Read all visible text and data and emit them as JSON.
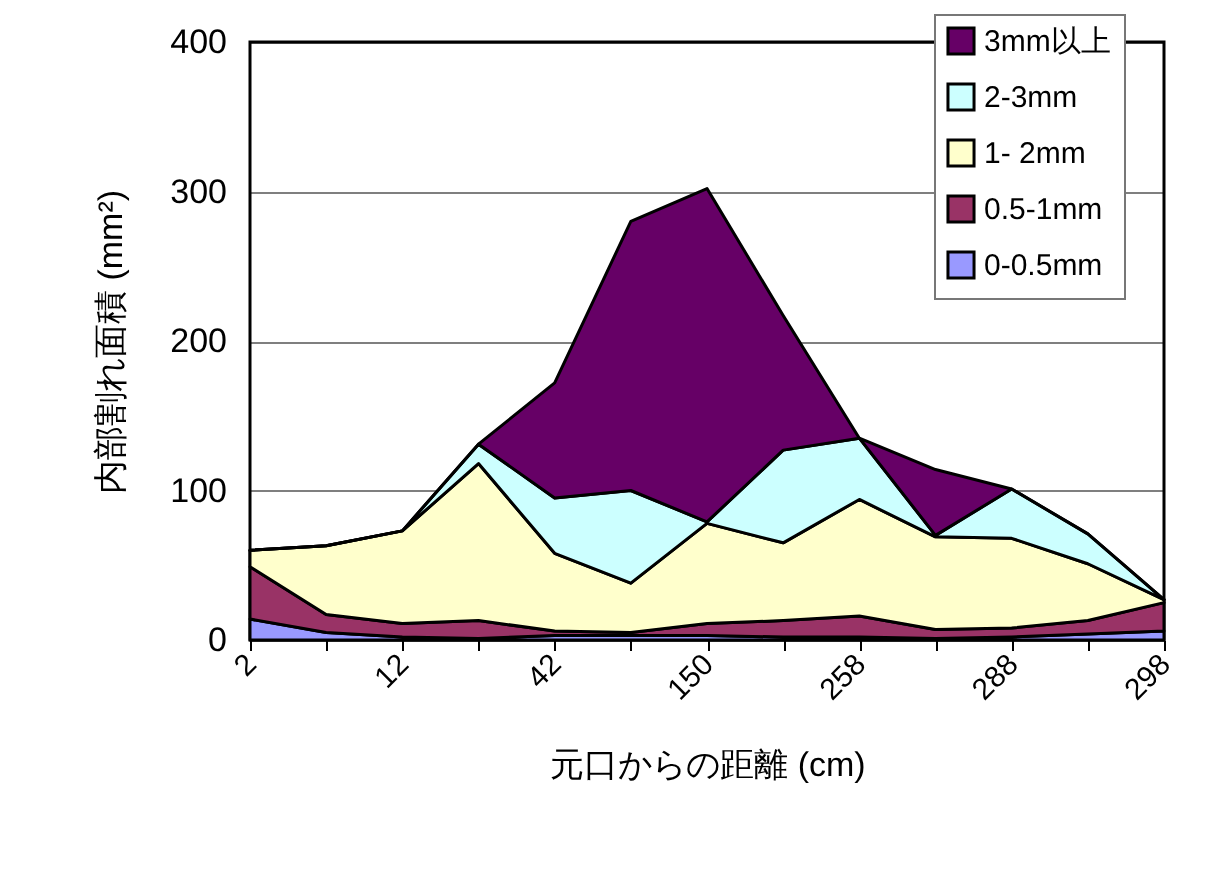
{
  "chart_data": {
    "type": "area",
    "stacked": true,
    "xlabel": "元口からの距離 (cm)",
    "ylabel": "内部割れ面積 (mm²)",
    "categories": [
      "2",
      null,
      "12",
      null,
      "42",
      null,
      "150",
      null,
      "258",
      null,
      "288",
      null,
      "298"
    ],
    "series": [
      {
        "name": "0-0.5mm",
        "color": "#9999ff",
        "values": [
          14,
          5,
          2,
          1,
          3,
          3,
          3,
          2,
          2,
          1,
          2,
          4,
          6
        ]
      },
      {
        "name": "0.5-1mm",
        "color": "#993366",
        "values": [
          35,
          12,
          9,
          12,
          3,
          2,
          8,
          11,
          14,
          6,
          6,
          9,
          19
        ]
      },
      {
        "name": "1- 2mm",
        "color": "#ffffcc",
        "values": [
          11,
          46,
          62,
          105,
          52,
          33,
          67,
          52,
          78,
          62,
          60,
          38,
          2
        ]
      },
      {
        "name": "2-3mm",
        "color": "#ccffff",
        "values": [
          0,
          0,
          0,
          13,
          37,
          62,
          1,
          62,
          41,
          1,
          33,
          20,
          0
        ]
      },
      {
        "name": "3mm以上",
        "color": "#660066",
        "values": [
          0,
          0,
          0,
          0,
          77,
          180,
          223,
          90,
          0,
          44,
          0,
          0,
          0
        ]
      }
    ],
    "ylim": [
      0,
      400
    ],
    "yticks": [
      0,
      100,
      200,
      300,
      400
    ],
    "grid": "y",
    "legend": "top right"
  }
}
